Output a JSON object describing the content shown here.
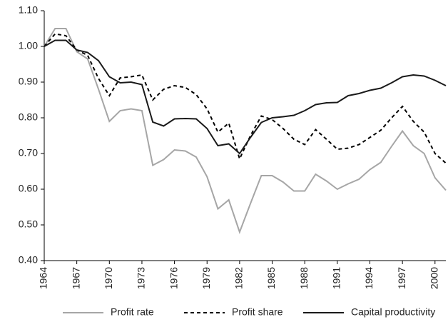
{
  "chart_data": {
    "type": "line",
    "x": [
      1964,
      1965,
      1966,
      1967,
      1968,
      1969,
      1970,
      1971,
      1972,
      1973,
      1974,
      1975,
      1976,
      1977,
      1978,
      1979,
      1980,
      1981,
      1982,
      1983,
      1984,
      1985,
      1986,
      1987,
      1988,
      1989,
      1990,
      1991,
      1992,
      1993,
      1994,
      1995,
      1996,
      1997,
      1998,
      1999,
      2000,
      2001
    ],
    "series": [
      {
        "name": "Profit rate",
        "color": "#a6a6a6",
        "dashed": false,
        "values": [
          1.0,
          1.05,
          1.05,
          0.985,
          0.965,
          0.88,
          0.79,
          0.82,
          0.825,
          0.82,
          0.667,
          0.683,
          0.71,
          0.707,
          0.69,
          0.635,
          0.545,
          0.57,
          0.48,
          0.56,
          0.638,
          0.638,
          0.62,
          0.595,
          0.595,
          0.642,
          0.623,
          0.6,
          0.615,
          0.628,
          0.655,
          0.675,
          0.72,
          0.763,
          0.722,
          0.7,
          0.632,
          0.597
        ]
      },
      {
        "name": "Profit share",
        "color": "#000000",
        "dashed": true,
        "values": [
          1.0,
          1.035,
          1.03,
          0.99,
          0.975,
          0.91,
          0.862,
          0.912,
          0.915,
          0.92,
          0.85,
          0.88,
          0.89,
          0.885,
          0.865,
          0.825,
          0.76,
          0.785,
          0.685,
          0.75,
          0.805,
          0.795,
          0.77,
          0.74,
          0.725,
          0.767,
          0.74,
          0.712,
          0.715,
          0.725,
          0.745,
          0.765,
          0.8,
          0.832,
          0.79,
          0.76,
          0.7,
          0.673
        ]
      },
      {
        "name": "Capital productivity",
        "color": "#1a1a1a",
        "dashed": false,
        "values": [
          1.0,
          1.017,
          1.017,
          0.99,
          0.983,
          0.96,
          0.915,
          0.898,
          0.9,
          0.893,
          0.788,
          0.777,
          0.797,
          0.798,
          0.797,
          0.77,
          0.722,
          0.727,
          0.7,
          0.745,
          0.787,
          0.8,
          0.803,
          0.807,
          0.82,
          0.837,
          0.842,
          0.843,
          0.862,
          0.868,
          0.877,
          0.883,
          0.898,
          0.915,
          0.92,
          0.917,
          0.905,
          0.89
        ]
      }
    ],
    "xlim": [
      1964,
      2001
    ],
    "xticks": [
      1964,
      1967,
      1970,
      1973,
      1976,
      1979,
      1982,
      1985,
      1988,
      1991,
      1994,
      1997,
      2000
    ],
    "ylim": [
      0.4,
      1.1
    ],
    "yticks": [
      {
        "value": 0.4,
        "label": "0.40"
      },
      {
        "value": 0.5,
        "label": "0.50"
      },
      {
        "value": 0.6,
        "label": "0.60"
      },
      {
        "value": 0.7,
        "label": "0.70"
      },
      {
        "value": 0.8,
        "label": "0.80"
      },
      {
        "value": 0.9,
        "label": "0.90"
      },
      {
        "value": 1.0,
        "label": "1.00"
      },
      {
        "value": 1.1,
        "label": "1.10"
      }
    ],
    "grid": false,
    "legend": "bottom"
  }
}
